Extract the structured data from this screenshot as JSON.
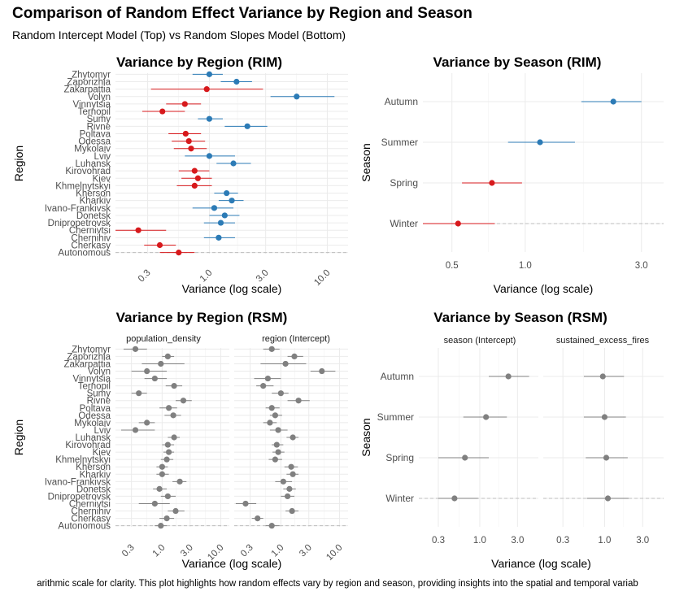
{
  "header": {
    "title": "Comparison of Random Effect Variance by Region and Season",
    "subtitle": "Random Intercept Model (Top) vs Random Slopes Model (Bottom)",
    "caption": "arithmic scale for clarity. This plot highlights how random effects vary by region and season, providing insights into the spatial and temporal variab"
  },
  "colors": {
    "high": "#2c7bb6",
    "low": "#d7191c",
    "neutral": "#808080",
    "grid": "#ebebeb",
    "refline": "#bdbdbd"
  },
  "chart_data": [
    {
      "id": "region_rim",
      "type": "scatter",
      "title": "Variance by Region (RIM)",
      "xlabel": "Variance (log scale)",
      "ylabel": "Region",
      "xscale": "log",
      "xlim": [
        0.16,
        15
      ],
      "xticks": [
        "0.3",
        "1.0",
        "3.0",
        "10.0"
      ],
      "xtick_values": [
        0.3,
        1,
        3,
        10
      ],
      "categories": [
        "Zhytomyr",
        "Zaporizhia",
        "Zakarpattia",
        "Volyn",
        "Vinnytsia",
        "Ternopil",
        "Sumy",
        "Rivne",
        "Poltava",
        "Odessa",
        "Mykolaiv",
        "Lviv",
        "Luhansk",
        "Kirovohrad",
        "Kiev",
        "Khmelnytskyi",
        "Kherson",
        "Kharkiv",
        "Ivano-Frankivsk",
        "Donetsk",
        "Dnipropetrovsk",
        "Chernivtsi",
        "Chernihiv",
        "Cherkasy",
        "Autonomous"
      ],
      "series": [
        {
          "values": [
            1.0,
            1.7,
            0.95,
            5.5,
            0.62,
            0.4,
            1.0,
            2.1,
            0.63,
            0.67,
            0.7,
            1.0,
            1.6,
            0.75,
            0.8,
            0.75,
            1.4,
            1.55,
            1.1,
            1.35,
            1.25,
            0.25,
            1.2,
            0.38,
            0.55
          ],
          "lower": [
            0.72,
            1.25,
            0.32,
            3.3,
            0.43,
            0.27,
            0.8,
            1.35,
            0.45,
            0.48,
            0.5,
            0.62,
            1.15,
            0.55,
            0.58,
            0.53,
            1.1,
            1.2,
            0.72,
            1.0,
            0.9,
            0.15,
            0.9,
            0.28,
            0.38
          ],
          "upper": [
            1.3,
            2.3,
            2.85,
            11.5,
            0.85,
            0.62,
            1.3,
            3.1,
            0.85,
            0.92,
            0.95,
            1.65,
            2.25,
            1.0,
            1.05,
            1.05,
            1.75,
            1.95,
            1.6,
            1.8,
            1.65,
            0.43,
            1.65,
            0.52,
            0.75
          ],
          "color_group": [
            "high",
            "high",
            "low",
            "high",
            "low",
            "low",
            "high",
            "high",
            "low",
            "low",
            "low",
            "high",
            "high",
            "low",
            "low",
            "low",
            "high",
            "high",
            "high",
            "high",
            "high",
            "low",
            "high",
            "low",
            "low"
          ]
        }
      ],
      "reference_line": "Autonomous"
    },
    {
      "id": "season_rim",
      "type": "scatter",
      "title": "Variance by Season (RIM)",
      "xlabel": "Variance (log scale)",
      "ylabel": "Season",
      "xscale": "log",
      "xlim": [
        0.38,
        3.7
      ],
      "xticks": [
        "0.5",
        "1.0",
        "3.0"
      ],
      "xtick_values": [
        0.5,
        1,
        3
      ],
      "categories": [
        "Autumn",
        "Summer",
        "Spring",
        "Winter"
      ],
      "series": [
        {
          "values": [
            2.3,
            1.15,
            0.73,
            0.53
          ],
          "lower": [
            1.7,
            0.85,
            0.55,
            0.38
          ],
          "upper": [
            3.0,
            1.6,
            0.97,
            0.75
          ],
          "color_group": [
            "high",
            "high",
            "low",
            "low"
          ]
        }
      ],
      "reference_line": "Winter"
    },
    {
      "id": "region_rsm",
      "type": "scatter",
      "title": "Variance by Region (RSM)",
      "xlabel": "Variance (log scale)",
      "ylabel": "Region",
      "xscale": "log",
      "xlim": [
        0.16,
        14
      ],
      "xticks": [
        "0.3",
        "1.0",
        "3.0",
        "10.0"
      ],
      "xtick_values": [
        0.3,
        1,
        3,
        10
      ],
      "facets": [
        "population_density",
        "region (Intercept)"
      ],
      "categories": [
        "Zhytomyr",
        "Zaporizhia",
        "Zakarpattia",
        "Volyn",
        "Vinnytsia",
        "Ternopil",
        "Sumy",
        "Rivne",
        "Poltava",
        "Odessa",
        "Mykolaiv",
        "Lviv",
        "Luhansk",
        "Kirovohrad",
        "Kiev",
        "Khmelnytskyi",
        "Kherson",
        "Kharkiv",
        "Ivano-Frankivsk",
        "Donetsk",
        "Dnipropetrovsk",
        "Chernivtsi",
        "Chernihiv",
        "Cherkasy",
        "Autonomous"
      ],
      "series": [
        {
          "name": "population_density",
          "values": [
            0.35,
            1.25,
            0.95,
            0.55,
            0.75,
            1.6,
            0.4,
            2.3,
            1.3,
            1.55,
            0.55,
            0.35,
            1.6,
            1.25,
            1.3,
            1.2,
            1.0,
            1.0,
            2.0,
            0.9,
            1.25,
            0.75,
            1.7,
            1.2,
            0.95
          ],
          "lower": [
            0.22,
            1.0,
            0.45,
            0.3,
            0.5,
            1.15,
            0.3,
            1.7,
            0.9,
            1.1,
            0.4,
            0.2,
            1.25,
            1.0,
            1.05,
            0.95,
            0.8,
            0.8,
            1.5,
            0.7,
            0.95,
            0.4,
            1.25,
            0.9,
            0.75
          ],
          "upper": [
            0.55,
            1.6,
            2.4,
            1.2,
            1.2,
            2.2,
            0.55,
            3.2,
            1.8,
            2.1,
            0.75,
            0.75,
            2.0,
            1.6,
            1.6,
            1.55,
            1.25,
            1.3,
            2.6,
            1.2,
            1.7,
            1.35,
            2.4,
            1.6,
            1.2
          ]
        },
        {
          "name": "region (Intercept)",
          "values": [
            0.7,
            1.7,
            1.2,
            5.0,
            0.6,
            0.5,
            1.0,
            2.0,
            0.7,
            0.8,
            0.65,
            0.9,
            1.6,
            0.85,
            0.9,
            0.8,
            1.5,
            1.6,
            1.1,
            1.4,
            1.3,
            0.25,
            1.55,
            0.4,
            0.7
          ],
          "lower": [
            0.5,
            1.3,
            0.45,
            3.2,
            0.35,
            0.38,
            0.7,
            1.3,
            0.55,
            0.65,
            0.5,
            0.65,
            1.25,
            0.7,
            0.72,
            0.62,
            1.15,
            1.25,
            0.8,
            1.1,
            1.0,
            0.17,
            1.2,
            0.32,
            0.55
          ],
          "upper": [
            0.95,
            2.4,
            2.7,
            8.5,
            1.0,
            0.75,
            1.35,
            3.1,
            0.95,
            1.05,
            0.85,
            1.3,
            2.0,
            1.1,
            1.15,
            1.05,
            1.95,
            2.0,
            1.55,
            1.8,
            1.7,
            0.38,
            2.0,
            0.5,
            0.95
          ]
        }
      ],
      "reference_line": "Autonomous"
    },
    {
      "id": "season_rsm",
      "type": "scatter",
      "title": "Variance by Season (RSM)",
      "xlabel": "Variance (log scale)",
      "ylabel": "Season",
      "xscale": "log",
      "xlim": [
        0.17,
        5.5
      ],
      "xticks": [
        "0.3",
        "1.0",
        "3.0"
      ],
      "xtick_values": [
        0.3,
        1,
        3
      ],
      "facets": [
        "season (Intercept)",
        "sustained_excess_fires"
      ],
      "categories": [
        "Autumn",
        "Summer",
        "Spring",
        "Winter"
      ],
      "series": [
        {
          "name": "season (Intercept)",
          "values": [
            2.3,
            1.2,
            0.65,
            0.48
          ],
          "lower": [
            1.3,
            0.62,
            0.3,
            0.3
          ],
          "upper": [
            4.2,
            2.2,
            1.3,
            0.95
          ]
        },
        {
          "name": "sustained_excess_fires",
          "values": [
            0.95,
            1.0,
            1.05,
            1.1
          ],
          "lower": [
            0.55,
            0.55,
            0.58,
            0.6
          ],
          "upper": [
            1.75,
            1.85,
            1.95,
            2.0
          ]
        }
      ],
      "reference_line": "Winter"
    }
  ]
}
